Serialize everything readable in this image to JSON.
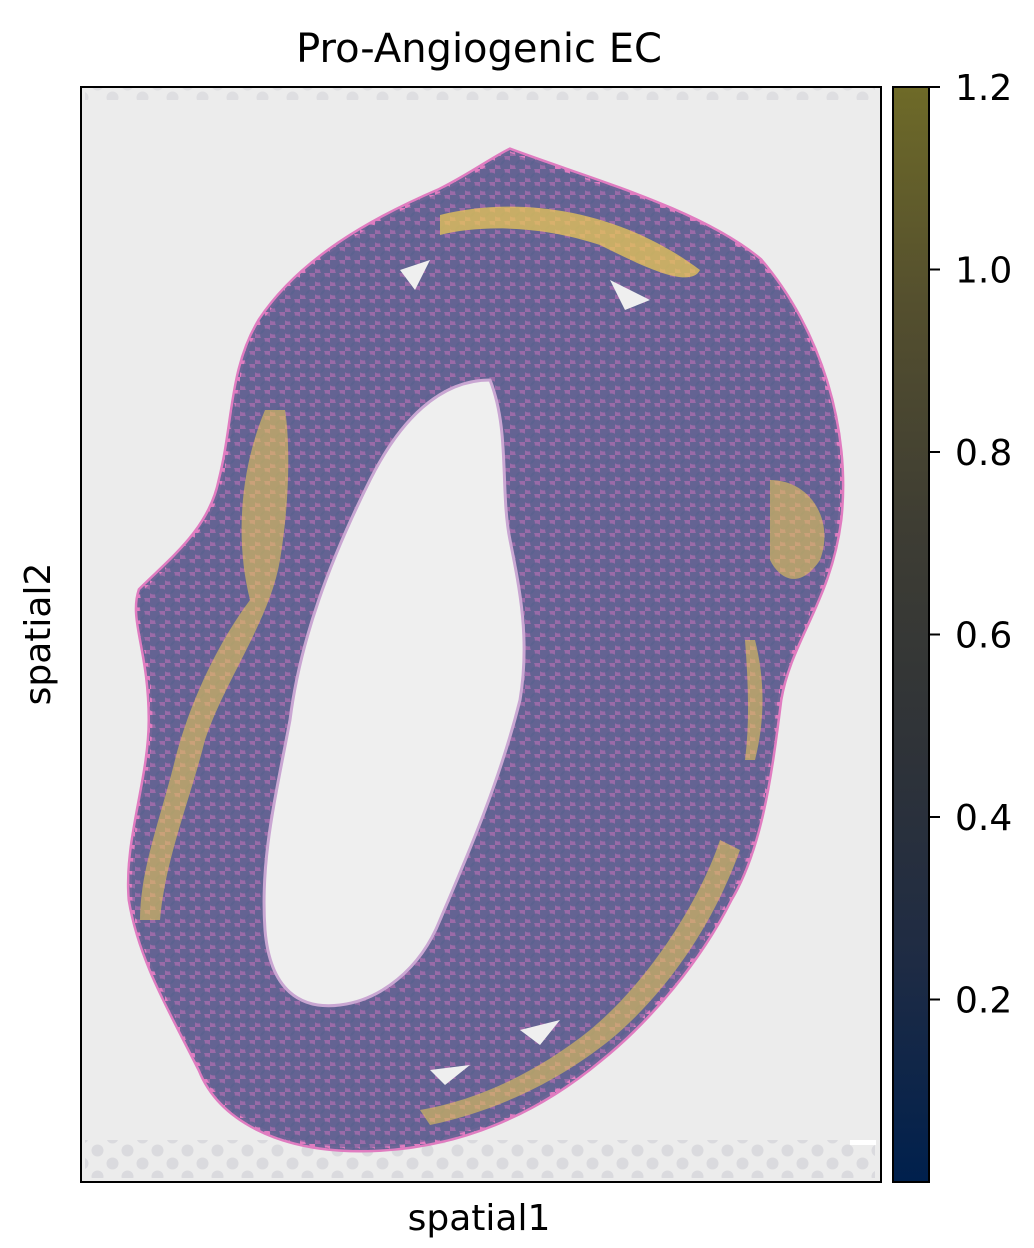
{
  "chart_data": {
    "type": "scatter",
    "title": "Pro-Angiogenic EC",
    "xlabel": "spatial1",
    "ylabel": "spatial2",
    "colorbar": {
      "ticks": [
        0.2,
        0.4,
        0.6,
        0.8,
        1.0,
        1.2
      ],
      "tick_labels": [
        "0.2",
        "0.4",
        "0.6",
        "0.8",
        "1.0",
        "1.2"
      ],
      "range": [
        0.0,
        1.2
      ],
      "colormap": "cividis",
      "stops": [
        "#00204d",
        "#31446b",
        "#666970",
        "#958f78",
        "#cbba69",
        "#6e6a28"
      ]
    },
    "background_color": "#ececec",
    "tissue_color": "#8a5e9b",
    "tissue_edge_color": "#d77ab8",
    "spot_low_color": "#5d6491",
    "spot_high_color": "#f2cd52"
  }
}
